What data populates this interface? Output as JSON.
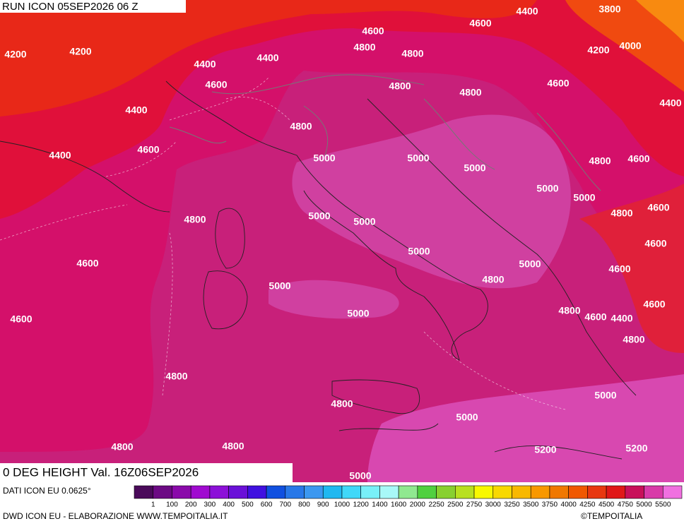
{
  "header": {
    "run_label": "RUN ICON 05SEP2026 06 Z"
  },
  "map": {
    "title": "0 DEG HEIGHT Val. 16Z06SEP2026",
    "contour_labels": [
      3800,
      4400,
      4600,
      4600,
      4200,
      4200,
      4800,
      4800,
      4200,
      4000,
      4400,
      4400,
      4600,
      4800,
      4800,
      4600,
      4400,
      4400,
      4800,
      4600,
      4400,
      5000,
      5000,
      5000,
      4800,
      4600,
      5000,
      5000,
      4600,
      4800,
      4800,
      5000,
      5000,
      5000,
      4600,
      4600,
      5000,
      4600,
      4800,
      5000,
      4600,
      5000,
      4800,
      4600,
      4400,
      4600,
      4800,
      4800,
      5000,
      4800,
      5000,
      4800,
      4800,
      5200,
      5200,
      5000
    ]
  },
  "legend": {
    "source": "DATI ICON EU 0.0625°",
    "labels": [
      1,
      100,
      200,
      300,
      400,
      500,
      600,
      700,
      800,
      900,
      1000,
      1200,
      1400,
      1600,
      2000,
      2250,
      2500,
      2750,
      3000,
      3250,
      3500,
      3750,
      4000,
      4250,
      4500,
      4750,
      5000,
      5500
    ],
    "colors": [
      "#4a0a5a",
      "#6c0a84",
      "#8a0aaa",
      "#a00ad0",
      "#8c10d8",
      "#6a10d8",
      "#4010e0",
      "#1050e0",
      "#2878e8",
      "#3c98f0",
      "#20b8f0",
      "#40d8f8",
      "#78f0f8",
      "#a8f8f8",
      "#90e890",
      "#50d040",
      "#88d030",
      "#b8e020",
      "#f8f800",
      "#f8d800",
      "#f8b800",
      "#f89800",
      "#f07800",
      "#f05800",
      "#e83810",
      "#e01818",
      "#c8105a",
      "#d83aa8",
      "#f070e0"
    ]
  },
  "footer": {
    "credit": "DWD ICON EU - ELABORAZIONE WWW.TEMPOITALIA.IT",
    "copyright": "©TEMPOITALIA"
  }
}
